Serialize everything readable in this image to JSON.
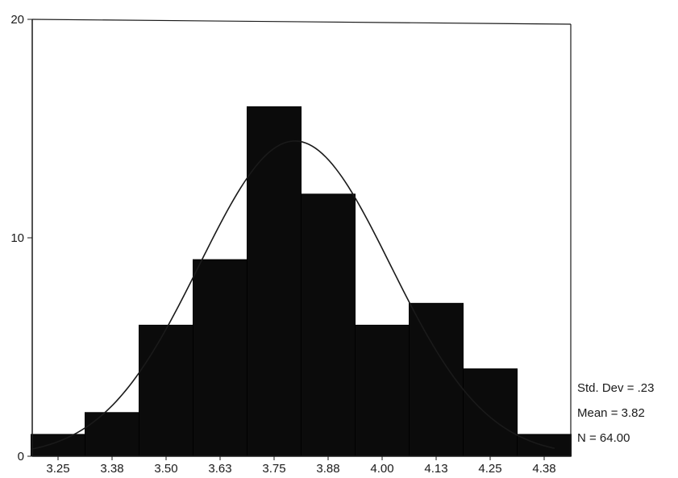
{
  "chart_data": {
    "type": "bar",
    "categories": [
      "3.25",
      "3.38",
      "3.50",
      "3.63",
      "3.75",
      "3.88",
      "4.00",
      "4.13",
      "4.25",
      "4.38"
    ],
    "values": [
      1,
      2,
      6,
      9,
      16,
      12,
      6,
      7,
      4,
      1
    ],
    "ylim": [
      0,
      20
    ],
    "yticks": [
      "0",
      "10",
      "20"
    ],
    "normal_curve": {
      "mean": 3.82,
      "std_dev": 0.23,
      "n": 64
    },
    "grid": false,
    "stats": {
      "std_dev": "Std. Dev = .23",
      "mean": "Mean = 3.82",
      "n": "N = 64.00"
    },
    "colors": {
      "bars": "#0b0b0b",
      "curve": "#1a1a1a",
      "axis": "#1a1a1a"
    }
  }
}
